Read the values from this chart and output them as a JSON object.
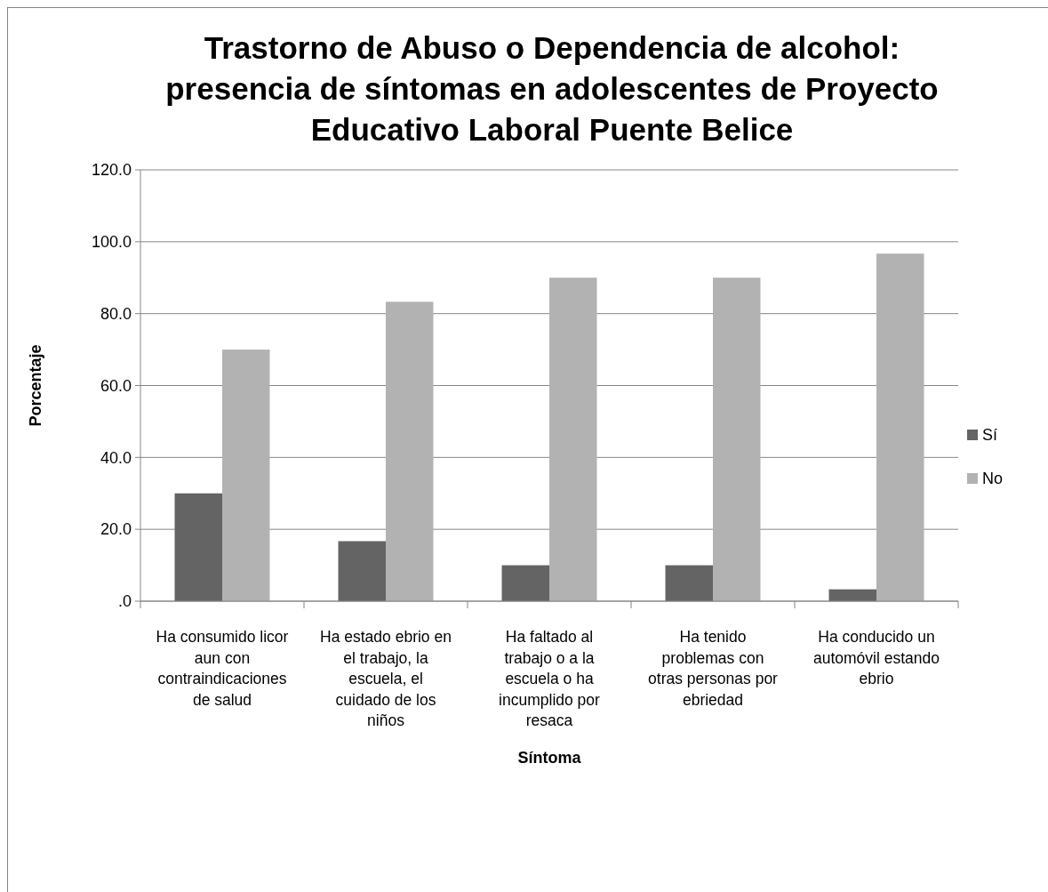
{
  "chart_data": {
    "type": "bar",
    "title": "Trastorno de Abuso o Dependencia de alcohol: presencia de síntomas en adolescentes de Proyecto Educativo Laboral Puente Belice",
    "xlabel": "Síntoma",
    "ylabel": "Porcentaje",
    "categories": [
      "Ha consumido licor aun con contraindicaciones de salud",
      "Ha estado ebrio en el trabajo, la escuela, el cuidado de los niños",
      "Ha faltado al trabajo o a la escuela o ha incumplido por resaca",
      "Ha tenido problemas con otras personas por ebriedad",
      "Ha conducido un automóvil estando ebrio"
    ],
    "series": [
      {
        "name": "Sí",
        "color": "#646464",
        "values": [
          30,
          16.7,
          10,
          10,
          3.3
        ]
      },
      {
        "name": "No",
        "color": "#b2b2b2",
        "values": [
          70,
          83.3,
          90,
          90,
          96.7
        ]
      }
    ],
    "ylim": [
      0,
      120
    ],
    "yticks": [
      {
        "value": 0,
        "label": ".0"
      },
      {
        "value": 20,
        "label": "20.0"
      },
      {
        "value": 40,
        "label": "40.0"
      },
      {
        "value": 60,
        "label": "60.0"
      },
      {
        "value": 80,
        "label": "80.0"
      },
      {
        "value": 100,
        "label": "100.0"
      },
      {
        "value": 120,
        "label": "120.0"
      }
    ],
    "grid": "y",
    "legend": "right"
  }
}
